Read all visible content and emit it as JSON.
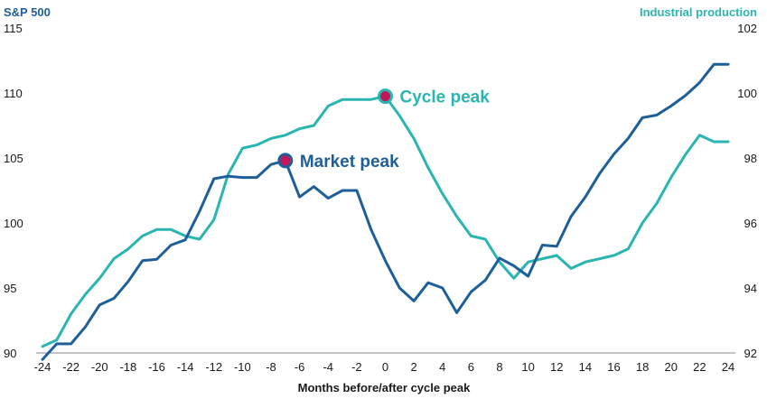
{
  "chart_data": {
    "type": "line",
    "left_axis_title": "S&P 500",
    "right_axis_title": "Industrial production",
    "xlabel": "Months before/after cycle peak",
    "x_ticks": [
      -24,
      -22,
      -20,
      -18,
      -16,
      -14,
      -12,
      -10,
      -8,
      -6,
      -4,
      -2,
      0,
      2,
      4,
      6,
      8,
      10,
      12,
      14,
      16,
      18,
      20,
      22,
      24
    ],
    "y_left_ticks": [
      90,
      95,
      100,
      105,
      110,
      115
    ],
    "y_right_ticks": [
      92,
      94,
      96,
      98,
      100,
      102
    ],
    "ylim_left": [
      90,
      115
    ],
    "ylim_right": [
      92,
      102
    ],
    "grid": false,
    "colors": {
      "sp500": "#1f5f99",
      "industrial": "#2bb5b1",
      "left_axis_title": "#1f5f99",
      "right_axis_title": "#2bb5b1",
      "marker_fill": "#c2185b"
    },
    "series": [
      {
        "name": "S&P 500",
        "axis": "left",
        "x": [
          -24,
          -23,
          -22,
          -21,
          -20,
          -19,
          -18,
          -17,
          -16,
          -15,
          -14,
          -13,
          -12,
          -11,
          -10,
          -9,
          -8,
          -7,
          -6,
          -5,
          -4,
          -3,
          -2,
          -1,
          0,
          1,
          2,
          3,
          4,
          5,
          6,
          7,
          8,
          9,
          10,
          11,
          12,
          13,
          14,
          15,
          16,
          17,
          18,
          19,
          20,
          21,
          22,
          23,
          24
        ],
        "values": [
          89.5,
          90.7,
          90.7,
          92.0,
          93.7,
          94.2,
          95.5,
          97.1,
          97.2,
          98.3,
          98.7,
          100.9,
          103.4,
          103.6,
          103.5,
          103.5,
          104.5,
          104.8,
          102.0,
          102.8,
          101.9,
          102.5,
          102.5,
          99.5,
          97.1,
          95.0,
          94.0,
          95.4,
          95.0,
          93.1,
          94.7,
          95.6,
          97.3,
          96.7,
          95.9,
          98.3,
          98.2,
          100.5,
          102.0,
          103.8,
          105.3,
          106.5,
          108.1,
          108.3,
          109.0,
          109.8,
          110.8,
          112.2,
          112.2
        ]
      },
      {
        "name": "Industrial production",
        "axis": "right",
        "x": [
          -24,
          -23,
          -22,
          -21,
          -20,
          -19,
          -18,
          -17,
          -16,
          -15,
          -14,
          -13,
          -12,
          -11,
          -10,
          -9,
          -8,
          -7,
          -6,
          -5,
          -4,
          -3,
          -2,
          -1,
          0,
          1,
          2,
          3,
          4,
          5,
          6,
          7,
          8,
          9,
          10,
          11,
          12,
          13,
          14,
          15,
          16,
          17,
          18,
          19,
          20,
          21,
          22,
          23,
          24
        ],
        "values": [
          92.2,
          92.4,
          93.2,
          93.8,
          94.3,
          94.9,
          95.2,
          95.6,
          95.8,
          95.8,
          95.6,
          95.5,
          96.1,
          97.5,
          98.3,
          98.4,
          98.6,
          98.7,
          98.9,
          99.0,
          99.6,
          99.8,
          99.8,
          99.8,
          99.9,
          99.3,
          98.6,
          97.7,
          96.9,
          96.2,
          95.6,
          95.5,
          94.8,
          94.3,
          94.8,
          94.9,
          95.0,
          94.6,
          94.8,
          94.9,
          95.0,
          95.2,
          96.0,
          96.6,
          97.4,
          98.1,
          98.7,
          98.5,
          98.5
        ]
      }
    ],
    "annotations": [
      {
        "label": "Market peak",
        "series": "S&P 500",
        "x": -7,
        "y": 104.8
      },
      {
        "label": "Cycle peak",
        "series": "Industrial production",
        "x": 0,
        "y": 99.9
      }
    ]
  }
}
